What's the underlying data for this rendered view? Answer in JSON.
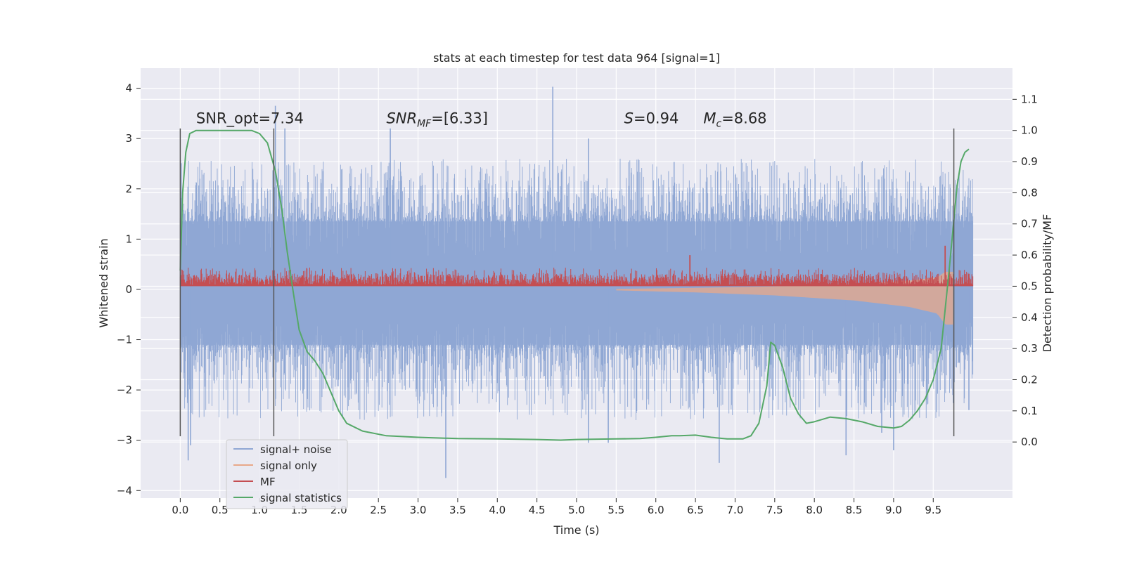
{
  "chart_data": {
    "type": "line",
    "title": "stats at each timestep for test data 964 [signal=1]",
    "xlabel": "Time (s)",
    "ylabel": "Whitened strain",
    "y2label": "Detection probability/MF",
    "xlim": [
      -0.5,
      10.5
    ],
    "ylim": [
      -4.15,
      4.4
    ],
    "y2lim": [
      -0.18,
      1.2
    ],
    "x_ticks": [
      "0.0",
      "0.5",
      "1.0",
      "1.5",
      "2.0",
      "2.5",
      "3.0",
      "3.5",
      "4.0",
      "4.5",
      "5.0",
      "5.5",
      "6.0",
      "6.5",
      "7.0",
      "7.5",
      "8.0",
      "8.5",
      "9.0",
      "9.5"
    ],
    "y_ticks": [
      "−4",
      "−3",
      "−2",
      "−1",
      "0",
      "1",
      "2",
      "3",
      "4"
    ],
    "y2_ticks": [
      "0.0",
      "0.1",
      "0.2",
      "0.3",
      "0.4",
      "0.5",
      "0.6",
      "0.7",
      "0.8",
      "0.9",
      "1.0",
      "1.1"
    ],
    "grid": true,
    "legend_position": "lower-left",
    "colors": {
      "signal_noise": "#8fa7d4",
      "signal_only": "#e8a889",
      "mf": "#c44e52",
      "signal_statistics": "#55a868",
      "vlines": "#555555",
      "background": "#eaeaf2",
      "grid": "#ffffff"
    },
    "annotations": [
      {
        "text": "SNR_opt=7.34",
        "x": 0.2,
        "y": 3.3
      },
      {
        "text_main": "SNR",
        "text_sub": "MF",
        "text_rest": "=[6.33]",
        "x": 2.6,
        "y": 3.3
      },
      {
        "text_main": "S",
        "text_rest": "=0.94",
        "x": 5.6,
        "y": 3.3
      },
      {
        "text_main": "M",
        "text_sub": "c",
        "text_rest": "=8.68",
        "x": 6.6,
        "y": 3.3
      }
    ],
    "vertical_lines": [
      {
        "x": 0.0,
        "y_range": [
          -2.92,
          3.2
        ]
      },
      {
        "x": 1.18,
        "y_range": [
          -2.92,
          3.2
        ]
      },
      {
        "x": 9.76,
        "y_range": [
          -2.92,
          3.2
        ]
      }
    ],
    "series": [
      {
        "name": "signal+ noise",
        "kind": "noise_band",
        "x_range": [
          0.0,
          10.0
        ],
        "core_range": [
          -1.1,
          1.35
        ],
        "typical_max": 2.6,
        "typical_min": -2.6,
        "spikes": [
          [
            0.1,
            -3.4
          ],
          [
            0.13,
            -3.1
          ],
          [
            1.2,
            3.65
          ],
          [
            1.32,
            3.2
          ],
          [
            2.65,
            3.2
          ],
          [
            3.35,
            -3.75
          ],
          [
            4.7,
            4.03
          ],
          [
            5.15,
            3.0
          ],
          [
            5.15,
            -3.05
          ],
          [
            5.4,
            -3.05
          ],
          [
            6.8,
            -3.45
          ],
          [
            8.4,
            -3.3
          ],
          [
            8.85,
            -2.85
          ],
          [
            9.0,
            -3.2
          ],
          [
            9.95,
            -2.4
          ]
        ]
      },
      {
        "name": "signal only",
        "kind": "chirp",
        "x_range": [
          5.5,
          9.75
        ],
        "amplitude_points": [
          [
            5.5,
            0.02
          ],
          [
            6.5,
            0.06
          ],
          [
            7.5,
            0.12
          ],
          [
            8.5,
            0.22
          ],
          [
            9.2,
            0.35
          ],
          [
            9.55,
            0.48
          ],
          [
            9.65,
            0.7
          ]
        ]
      },
      {
        "name": "MF",
        "kind": "matched_filter",
        "axis": "y2",
        "x_range": [
          0.0,
          10.0
        ],
        "base": 0.5,
        "band_top": 0.54,
        "band_max": 0.56,
        "spikes": [
          [
            6.43,
            0.6
          ],
          [
            9.65,
            0.63
          ]
        ]
      },
      {
        "name": "signal statistics",
        "kind": "line",
        "axis": "y2",
        "x": [
          0.0,
          0.03,
          0.07,
          0.12,
          0.2,
          0.35,
          0.5,
          0.7,
          0.9,
          1.0,
          1.1,
          1.2,
          1.28,
          1.35,
          1.42,
          1.5,
          1.6,
          1.7,
          1.8,
          1.9,
          2.0,
          2.1,
          2.3,
          2.6,
          3.0,
          3.5,
          4.0,
          4.5,
          4.8,
          5.0,
          5.5,
          5.8,
          6.0,
          6.2,
          6.3,
          6.5,
          6.7,
          6.9,
          7.1,
          7.2,
          7.3,
          7.4,
          7.45,
          7.5,
          7.6,
          7.7,
          7.8,
          7.9,
          8.0,
          8.2,
          8.4,
          8.6,
          8.8,
          9.0,
          9.1,
          9.2,
          9.3,
          9.4,
          9.5,
          9.6,
          9.7,
          9.8,
          9.85,
          9.9,
          9.95
        ],
        "y": [
          0.55,
          0.8,
          0.93,
          0.99,
          1.0,
          1.0,
          1.0,
          1.0,
          1.0,
          0.99,
          0.96,
          0.87,
          0.75,
          0.61,
          0.49,
          0.36,
          0.29,
          0.26,
          0.22,
          0.16,
          0.1,
          0.06,
          0.035,
          0.02,
          0.015,
          0.011,
          0.01,
          0.008,
          0.006,
          0.008,
          0.01,
          0.011,
          0.015,
          0.02,
          0.02,
          0.022,
          0.015,
          0.01,
          0.01,
          0.02,
          0.06,
          0.18,
          0.32,
          0.31,
          0.24,
          0.14,
          0.09,
          0.06,
          0.065,
          0.08,
          0.075,
          0.065,
          0.05,
          0.045,
          0.05,
          0.07,
          0.1,
          0.14,
          0.2,
          0.3,
          0.55,
          0.82,
          0.9,
          0.93,
          0.94
        ]
      }
    ]
  }
}
